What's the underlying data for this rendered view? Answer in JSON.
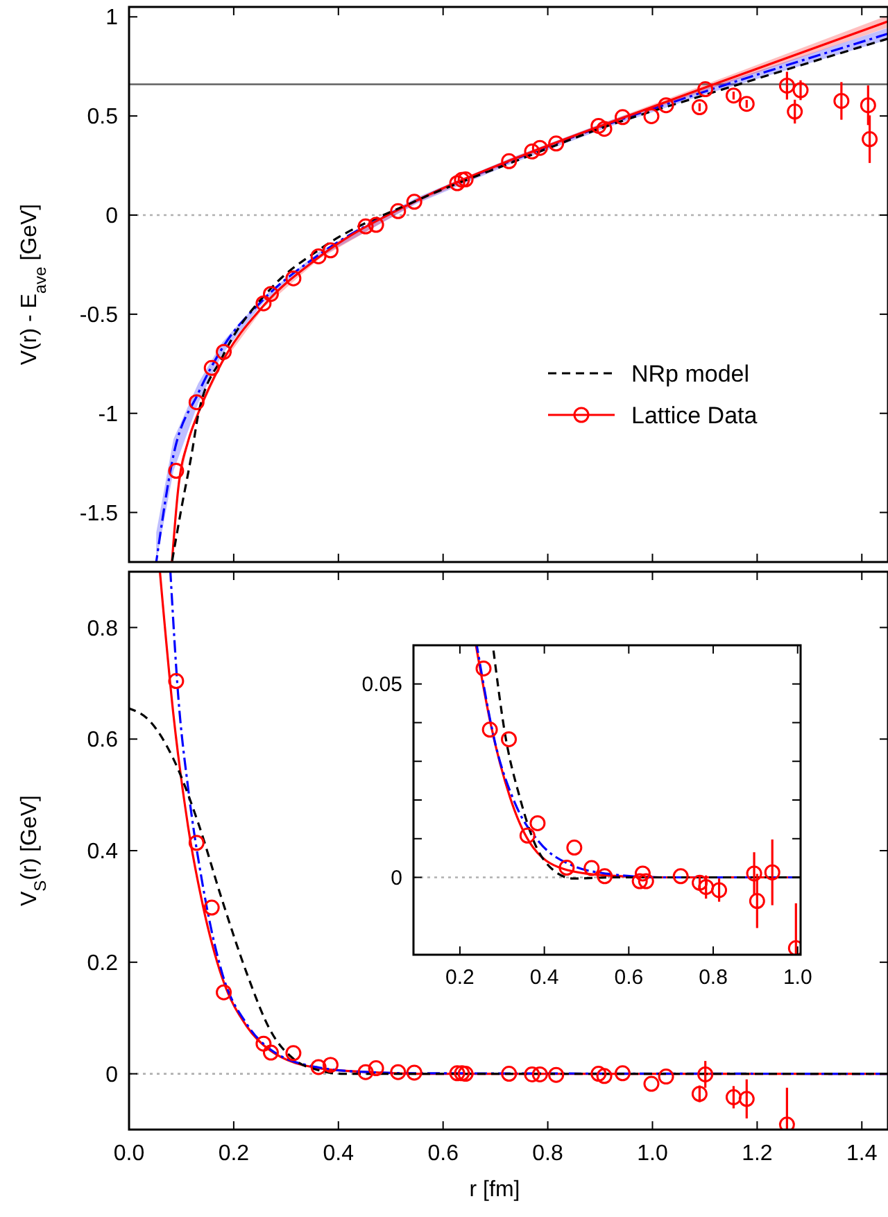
{
  "chart_data": [
    {
      "type": "line",
      "ylabel": "V(r) - E$_{ave}$  [GeV]",
      "xlim": [
        0,
        1.45
      ],
      "ylim": [
        -1.75,
        1.05
      ],
      "tick_labels": "y",
      "legend": "center right",
      "xticks": [
        {
          "value": 0,
          "label": null
        },
        {
          "value": 0.2,
          "label": null
        },
        {
          "value": 0.4,
          "label": null
        },
        {
          "value": 0.6,
          "label": null
        },
        {
          "value": 0.8,
          "label": null
        },
        {
          "value": 1,
          "label": null
        },
        {
          "value": 1.2,
          "label": null
        },
        {
          "value": 1.4,
          "label": null
        }
      ],
      "yticks": [
        -1.5,
        -1,
        -0.5,
        0,
        0.5,
        1
      ],
      "ref_lines": [
        {
          "axis": "y",
          "value": 0,
          "color": "#b0b0b0",
          "line_style": "dotted"
        },
        {
          "axis": "y",
          "value": 0.66,
          "color": "#606060",
          "line_style": "solid"
        }
      ],
      "series": [
        {
          "color": "#0000ff",
          "line_style": "dashdot",
          "x": [
            0.052,
            0.085,
            0.132,
            0.178,
            0.257,
            0.364,
            0.55,
            0.736,
            0.922,
            1.1,
            1.45
          ],
          "values": [
            -1.75,
            -1.21,
            -0.9,
            -0.672,
            -0.425,
            -0.198,
            0.074,
            0.28,
            0.465,
            0.623,
            0.915
          ],
          "lower": [
            -1.75,
            -1.29,
            -0.95,
            -0.702,
            -0.44,
            -0.213,
            0.059,
            0.265,
            0.45,
            0.608,
            0.885
          ],
          "upper": [
            -1.6,
            -1.13,
            -0.85,
            -0.642,
            -0.41,
            -0.183,
            0.089,
            0.295,
            0.48,
            0.638,
            0.945
          ]
        },
        {
          "color": "#ff0000",
          "line_style": "solid",
          "x": [
            0.082,
            0.094,
            0.113,
            0.132,
            0.178,
            0.257,
            0.364,
            0.55,
            0.736,
            0.922,
            1.1,
            1.45
          ],
          "values": [
            -1.75,
            -1.38,
            -1.14,
            -1.0,
            -0.74,
            -0.457,
            -0.21,
            0.074,
            0.284,
            0.47,
            0.643,
            0.977
          ],
          "lower": [
            -1.75,
            -1.39,
            -1.15,
            -1.01,
            -0.75,
            -0.467,
            -0.22,
            0.064,
            0.274,
            0.46,
            0.628,
            0.947
          ],
          "upper": [
            -1.74,
            -1.37,
            -1.13,
            -0.99,
            -0.73,
            -0.447,
            -0.2,
            0.084,
            0.294,
            0.48,
            0.658,
            1.007
          ]
        },
        {
          "name": "NRp model",
          "color": "#000000",
          "line_style": "dashed",
          "x": [
            0.082,
            0.1,
            0.12,
            0.132,
            0.178,
            0.271,
            0.364,
            0.55,
            0.736,
            0.922,
            1.1,
            1.45
          ],
          "values": [
            -1.75,
            -1.48,
            -1.2,
            -1.01,
            -0.717,
            -0.37,
            -0.173,
            0.074,
            0.27,
            0.457,
            0.606,
            0.89
          ]
        },
        {
          "name": "Lattice Data",
          "type": "scatter",
          "color": "#ff0000",
          "marker": "circle",
          "x": [
            0.09,
            0.129,
            0.158,
            0.181,
            0.257,
            0.271,
            0.314,
            0.362,
            0.385,
            0.452,
            0.472,
            0.514,
            0.545,
            0.627,
            0.636,
            0.643,
            0.726,
            0.77,
            0.785,
            0.816,
            0.897,
            0.908,
            0.943,
            0.998,
            1.026,
            1.09,
            1.101,
            1.155,
            1.18,
            1.257,
            1.272,
            1.283,
            1.361,
            1.412,
            1.415
          ],
          "values": [
            -1.29,
            -0.944,
            -0.771,
            -0.69,
            -0.445,
            -0.398,
            -0.319,
            -0.208,
            -0.178,
            -0.057,
            -0.049,
            0.02,
            0.067,
            0.161,
            0.178,
            0.18,
            0.272,
            0.321,
            0.339,
            0.361,
            0.45,
            0.435,
            0.494,
            0.499,
            0.554,
            0.544,
            0.635,
            0.603,
            0.561,
            0.653,
            0.522,
            0.63,
            0.576,
            0.554,
            0.383
          ],
          "errors": [
            null,
            null,
            null,
            null,
            null,
            null,
            null,
            null,
            null,
            null,
            null,
            null,
            null,
            null,
            null,
            null,
            null,
            null,
            null,
            null,
            null,
            null,
            null,
            null,
            null,
            0.02,
            null,
            0.02,
            0.02,
            0.07,
            0.06,
            0.05,
            0.095,
            0.1,
            0.12
          ]
        }
      ]
    },
    {
      "type": "line",
      "ylabel": "V$_{S}$(r)  [GeV]",
      "xlabel": "r  [fm]",
      "xlim": [
        0,
        1.45
      ],
      "ylim": [
        -0.1,
        0.9
      ],
      "xticks": [
        {
          "value": 0,
          "label": "0.0"
        },
        {
          "value": 0.2,
          "label": "0.2"
        },
        {
          "value": 0.4,
          "label": "0.4"
        },
        {
          "value": 0.6,
          "label": "0.6"
        },
        {
          "value": 0.8,
          "label": "0.8"
        },
        {
          "value": 1,
          "label": "1.0"
        },
        {
          "value": 1.2,
          "label": "1.2"
        },
        {
          "value": 1.4,
          "label": "1.4"
        }
      ],
      "yticks": [
        0,
        0.2,
        0.4,
        0.6,
        0.8
      ],
      "ref_lines": [
        {
          "axis": "y",
          "value": 0,
          "color": "#b0b0b0",
          "line_style": "dotted"
        }
      ],
      "series": [
        {
          "color": "#ff0000",
          "line_style": "solid",
          "x": [
            0.059,
            0.085,
            0.113,
            0.141,
            0.178,
            0.225,
            0.271,
            0.364,
            0.457,
            0.55,
            1.45
          ],
          "values": [
            0.9,
            0.642,
            0.442,
            0.302,
            0.172,
            0.085,
            0.041,
            0.01,
            0.003,
            0,
            0
          ]
        },
        {
          "color": "#0000ff",
          "line_style": "dashdot",
          "x": [
            0.079,
            0.094,
            0.113,
            0.141,
            0.178,
            0.225,
            0.271,
            0.364,
            0.457,
            0.55,
            1.45
          ],
          "values": [
            0.9,
            0.677,
            0.511,
            0.337,
            0.18,
            0.089,
            0.043,
            0.011,
            0.003,
            0.001,
            0
          ]
        },
        {
          "color": "#000000",
          "line_style": "dashed",
          "x": [
            0,
            0.039,
            0.085,
            0.132,
            0.178,
            0.225,
            0.271,
            0.318,
            0.364,
            0.41,
            1.45
          ],
          "values": [
            0.655,
            0.633,
            0.564,
            0.45,
            0.311,
            0.18,
            0.076,
            0.024,
            0.006,
            0,
            0
          ]
        },
        {
          "type": "scatter",
          "color": "#ff0000",
          "marker": "circle",
          "x": [
            0.09,
            0.129,
            0.158,
            0.181,
            0.257,
            0.271,
            0.314,
            0.362,
            0.385,
            0.452,
            0.472,
            0.514,
            0.545,
            0.627,
            0.636,
            0.643,
            0.726,
            0.77,
            0.785,
            0.816,
            0.897,
            0.908,
            0.943,
            0.998,
            1.026,
            1.09,
            1.101,
            1.155,
            1.18,
            1.257
          ],
          "values": [
            0.704,
            0.414,
            0.298,
            0.146,
            0.054,
            0.038,
            0.037,
            0.012,
            0.016,
            0.003,
            0.01,
            0.003,
            0.002,
            0.001,
            0.001,
            0,
            0,
            -0.001,
            -0.001,
            -0.002,
            0,
            -0.004,
            0.001,
            -0.018,
            -0.005,
            -0.036,
            -0.001,
            -0.042,
            -0.045,
            -0.091
          ],
          "errors": [
            null,
            null,
            null,
            null,
            null,
            null,
            null,
            null,
            null,
            null,
            null,
            null,
            null,
            null,
            null,
            null,
            null,
            null,
            null,
            null,
            null,
            null,
            null,
            null,
            null,
            0.015,
            0.024,
            0.02,
            0.035,
            [
              -0.1,
              -0.025
            ]
          ]
        }
      ]
    },
    {
      "type": "line",
      "xlim": [
        0.09,
        1.007
      ],
      "ylim": [
        -0.02,
        0.06
      ],
      "xticks": [
        0.2,
        0.4,
        0.6,
        0.8,
        {
          "value": 1,
          "label": "1.0"
        }
      ],
      "yticks": [
        0,
        {
          "value": 0.01,
          "label": null
        },
        {
          "value": 0.02,
          "label": null
        },
        {
          "value": 0.03,
          "label": null
        },
        {
          "value": 0.04,
          "label": null
        },
        0.05
      ],
      "ref_lines": [
        {
          "axis": "y",
          "value": 0,
          "color": "#b0b0b0",
          "line_style": "dotted"
        }
      ],
      "series": [
        {
          "color": "#ff0000",
          "line_style": "solid",
          "x": [
            0.238,
            0.273,
            0.319,
            0.365,
            0.445,
            0.543,
            0.675,
            1.007
          ],
          "values": [
            0.06,
            0.0396,
            0.0206,
            0.0091,
            0.0022,
            0.0005,
            0,
            0
          ]
        },
        {
          "color": "#0000ff",
          "line_style": "dashdot",
          "x": [
            0.24,
            0.284,
            0.33,
            0.388,
            0.468,
            0.56,
            0.675,
            1.007
          ],
          "values": [
            0.06,
            0.0345,
            0.0193,
            0.0091,
            0.003,
            0.0008,
            0,
            0
          ]
        },
        {
          "color": "#000000",
          "line_style": "dashed",
          "x": [
            0.278,
            0.307,
            0.342,
            0.376,
            0.422,
            0.468,
            0.56,
            1.007
          ],
          "values": [
            0.06,
            0.037,
            0.0206,
            0.0091,
            0.0018,
            -0.0003,
            0,
            0
          ]
        },
        {
          "type": "scatter",
          "color": "#ff0000",
          "marker": "circle",
          "x": [
            0.256,
            0.271,
            0.316,
            0.36,
            0.384,
            0.453,
            0.471,
            0.512,
            0.543,
            0.626,
            0.633,
            0.641,
            0.723,
            0.768,
            0.783,
            0.814,
            0.897,
            0.904,
            0.94,
            0.996
          ],
          "values": [
            0.054,
            0.0382,
            0.0357,
            0.0108,
            0.014,
            0.0025,
            0.0077,
            0.0024,
            0.0003,
            -0.001,
            0.001,
            -0.001,
            0.0003,
            -0.0014,
            -0.0025,
            -0.0033,
            0.001,
            -0.0061,
            0.0013,
            -0.0183
          ],
          "errors": [
            null,
            null,
            null,
            null,
            null,
            null,
            null,
            null,
            null,
            null,
            null,
            null,
            null,
            0.002,
            0.003,
            0.003,
            0.0055,
            0.007,
            0.0085,
            [
              -0.02,
              -0.0067
            ]
          ]
        }
      ]
    }
  ]
}
